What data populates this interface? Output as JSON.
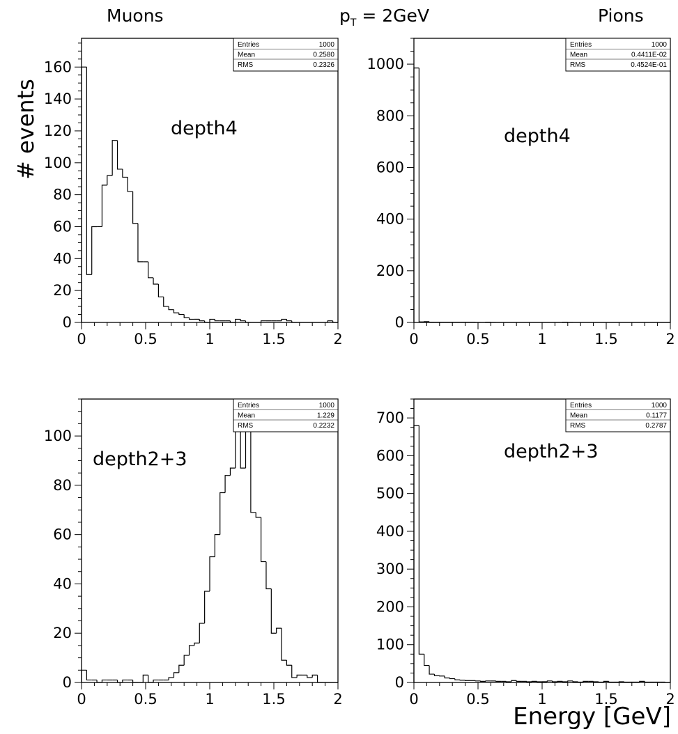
{
  "header": {
    "left_title": "Muons",
    "center_prefix": "p",
    "center_subscript": "T",
    "center_suffix": " = 2GeV",
    "right_title": "Pions"
  },
  "ylabel": "# events",
  "xlabel": "Energy [GeV]",
  "colors": {
    "line": "#000000",
    "background": "#ffffff"
  },
  "chart_data": [
    {
      "type": "bar",
      "panel": "muons-depth4",
      "annotation": "depth4",
      "xlim": [
        0,
        2
      ],
      "ylim": [
        0,
        178
      ],
      "x_ticks": [
        "0",
        "0.5",
        "1",
        "1.5",
        "2"
      ],
      "y_ticks": [
        0,
        20,
        40,
        60,
        80,
        100,
        120,
        140,
        160
      ],
      "bin_width": 0.04,
      "values": [
        160,
        30,
        60,
        60,
        86,
        92,
        114,
        96,
        91,
        82,
        62,
        38,
        38,
        28,
        24,
        16,
        10,
        8,
        6,
        5,
        3,
        2,
        2,
        1,
        0,
        2,
        1,
        1,
        1,
        0,
        2,
        1,
        0,
        0,
        0,
        1,
        1,
        1,
        1,
        2,
        1,
        0,
        0,
        0,
        0,
        0,
        0,
        0,
        1,
        0
      ],
      "stats": {
        "entries_label": "Entries",
        "entries": "1000",
        "mean_label": "Mean",
        "mean": "0.2580",
        "rms_label": "RMS",
        "rms": "0.2326"
      }
    },
    {
      "type": "bar",
      "panel": "pions-depth4",
      "annotation": "depth4",
      "xlim": [
        0,
        2
      ],
      "ylim": [
        0,
        1100
      ],
      "x_ticks": [
        "0",
        "0.5",
        "1",
        "1.5",
        "2"
      ],
      "y_ticks": [
        0,
        200,
        400,
        600,
        800,
        1000
      ],
      "bin_width": 0.04,
      "values": [
        985,
        2,
        3,
        1,
        1,
        1,
        1,
        1,
        1,
        1,
        1,
        1,
        0,
        0,
        1,
        0,
        0,
        0,
        0,
        0,
        0,
        0,
        0,
        0,
        0,
        0,
        0,
        0,
        0,
        1,
        0,
        0,
        0,
        0,
        0,
        0,
        0,
        0,
        0,
        0,
        0,
        0,
        0,
        0,
        0,
        0,
        0,
        0,
        0,
        0
      ],
      "stats": {
        "entries_label": "Entries",
        "entries": "1000",
        "mean_label": "Mean",
        "mean": "0.4411E-02",
        "rms_label": "RMS",
        "rms": "0.4524E-01"
      }
    },
    {
      "type": "bar",
      "panel": "muons-depth2+3",
      "annotation": "depth2+3",
      "xlim": [
        0,
        2
      ],
      "ylim": [
        0,
        115
      ],
      "x_ticks": [
        "0",
        "0.5",
        "1",
        "1.5",
        "2"
      ],
      "y_ticks": [
        0,
        20,
        40,
        60,
        80,
        100
      ],
      "bin_width": 0.04,
      "values": [
        5,
        1,
        1,
        0,
        1,
        1,
        1,
        0,
        1,
        1,
        0,
        0,
        3,
        0,
        1,
        1,
        1,
        2,
        4,
        7,
        11,
        15,
        16,
        24,
        37,
        51,
        60,
        77,
        84,
        87,
        103,
        87,
        103,
        69,
        67,
        49,
        38,
        20,
        22,
        9,
        7,
        2,
        3,
        3,
        2,
        3,
        0,
        0,
        0,
        0
      ],
      "stats": {
        "entries_label": "Entries",
        "entries": "1000",
        "mean_label": "Mean",
        "mean": "1.229",
        "rms_label": "RMS",
        "rms": "0.2232"
      }
    },
    {
      "type": "bar",
      "panel": "pions-depth2+3",
      "annotation": "depth2+3",
      "xlim": [
        0,
        2
      ],
      "ylim": [
        0,
        750
      ],
      "x_ticks": [
        "0",
        "0.5",
        "1",
        "1.5",
        "2"
      ],
      "y_ticks": [
        0,
        100,
        200,
        300,
        400,
        500,
        600,
        700
      ],
      "bin_width": 0.04,
      "values": [
        680,
        75,
        45,
        22,
        18,
        17,
        12,
        10,
        7,
        6,
        5,
        5,
        4,
        3,
        4,
        4,
        3,
        3,
        2,
        5,
        3,
        3,
        2,
        3,
        2,
        2,
        4,
        2,
        3,
        2,
        4,
        2,
        1,
        3,
        3,
        2,
        1,
        3,
        1,
        1,
        2,
        1,
        1,
        1,
        3,
        1,
        1,
        1,
        1,
        0
      ],
      "stats": {
        "entries_label": "Entries",
        "entries": "1000",
        "mean_label": "Mean",
        "mean": "0.1177",
        "rms_label": "RMS",
        "rms": "0.2787"
      }
    }
  ]
}
